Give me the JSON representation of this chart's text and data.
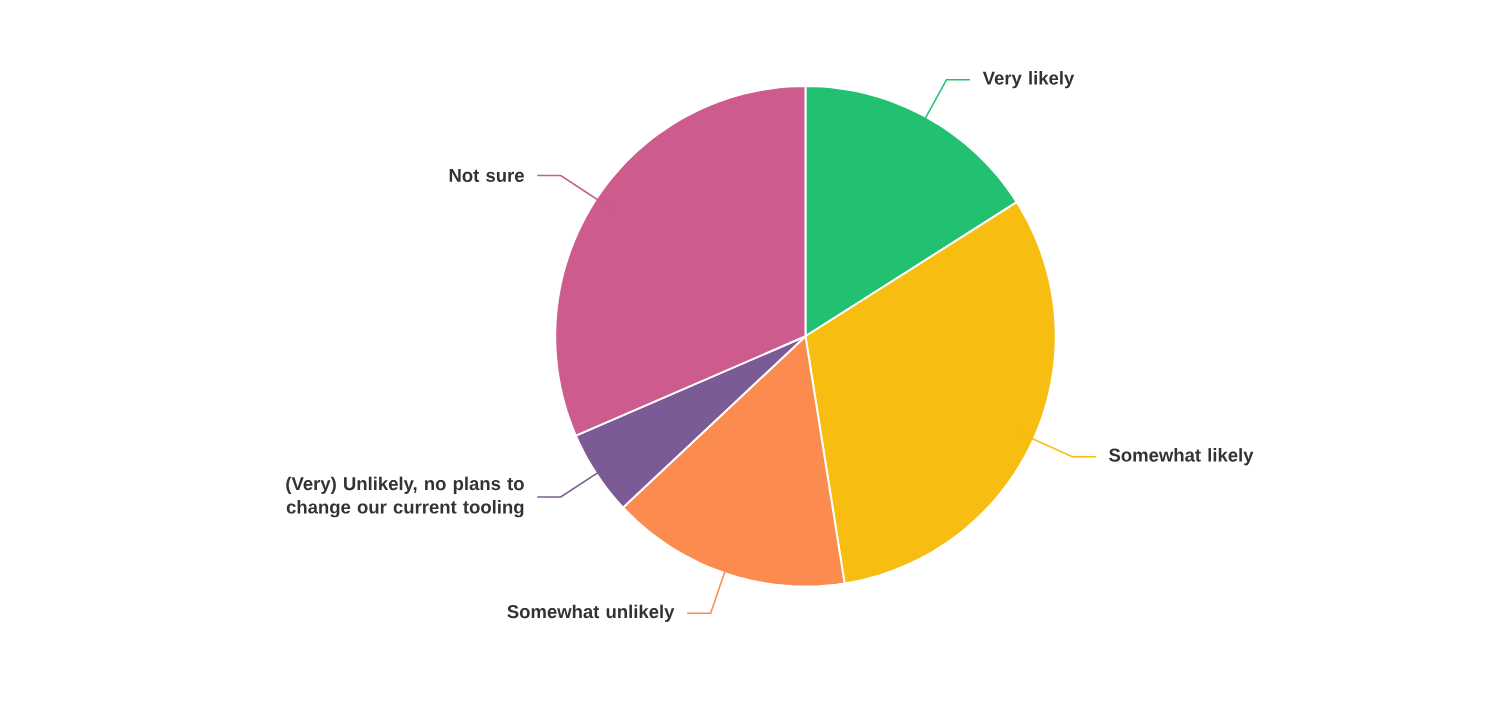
{
  "chart_data": {
    "type": "pie",
    "categories": [
      "Very likely",
      "Somewhat likely",
      "Somewhat unlikely",
      "(Very) Unlikely, no plans to change our current tooling",
      "Not sure"
    ],
    "values": [
      16,
      31.5,
      15.5,
      5.5,
      31.5
    ],
    "colors": [
      "#22c172",
      "#f7bd10",
      "#fb8b4e",
      "#7b5b96",
      "#cd5b8e"
    ]
  }
}
